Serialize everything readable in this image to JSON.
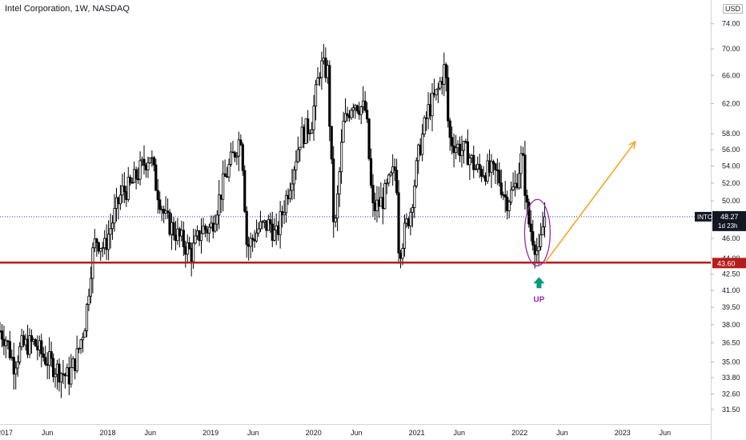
{
  "header": {
    "title": "Intel Corporation, 1W, NASDAQ",
    "currency": "USD"
  },
  "colors": {
    "candle": "#000000",
    "support_line": "#b71c1c",
    "last_price_line": "#2f3dc0",
    "projection_arrow": "#f5a623",
    "highlight_ellipse": "#9c27b0",
    "up_arrow": "#089981",
    "up_label": "#9c27b0"
  },
  "chart_data": {
    "type": "candlestick",
    "symbol": "INTC",
    "interval": "1W",
    "exchange": "NASDAQ",
    "y_scale": "log",
    "ylim": [
      30.5,
      78
    ],
    "xlim": [
      "2016-12-15",
      "2023-11-10"
    ],
    "y_ticks": [
      "31.50",
      "32.60",
      "33.80",
      "35.00",
      "36.50",
      "38.00",
      "39.50",
      "41.00",
      "42.50",
      "44.00",
      "46.00",
      "48.00",
      "50.00",
      "52.00",
      "54.00",
      "56.00",
      "58.00",
      "62.00",
      "66.00",
      "70.00",
      "74.00"
    ],
    "x_ticks": [
      {
        "label": "2017",
        "date": "2017-01-01"
      },
      {
        "label": "Jun",
        "date": "2017-06-01"
      },
      {
        "label": "2018",
        "date": "2018-01-01"
      },
      {
        "label": "Jun",
        "date": "2018-06-01"
      },
      {
        "label": "2019",
        "date": "2019-01-01"
      },
      {
        "label": "Jun",
        "date": "2019-06-01"
      },
      {
        "label": "2020",
        "date": "2020-01-01"
      },
      {
        "label": "Jun",
        "date": "2020-06-01"
      },
      {
        "label": "2021",
        "date": "2021-01-01"
      },
      {
        "label": "Jun",
        "date": "2021-06-01"
      },
      {
        "label": "2022",
        "date": "2022-01-01"
      },
      {
        "label": "Jun",
        "date": "2022-06-01"
      },
      {
        "label": "2023",
        "date": "2023-01-01"
      },
      {
        "label": "Jun",
        "date": "2023-06-01"
      }
    ],
    "close_path": [
      [
        "2016-12-15",
        37.5
      ],
      [
        "2017-01-06",
        36.8
      ],
      [
        "2017-02-01",
        34.8
      ],
      [
        "2017-03-01",
        36.2
      ],
      [
        "2017-04-15",
        36.5
      ],
      [
        "2017-05-15",
        35.5
      ],
      [
        "2017-07-01",
        34.5
      ],
      [
        "2017-08-15",
        33.8
      ],
      [
        "2017-09-15",
        35.5
      ],
      [
        "2017-10-15",
        38.5
      ],
      [
        "2017-11-05",
        44.0
      ],
      [
        "2017-11-20",
        46.0
      ],
      [
        "2017-12-20",
        45.0
      ],
      [
        "2018-01-20",
        48.0
      ],
      [
        "2018-02-20",
        51.0
      ],
      [
        "2018-03-20",
        51.5
      ],
      [
        "2018-04-25",
        53.5
      ],
      [
        "2018-06-01",
        55.5
      ],
      [
        "2018-06-20",
        52.0
      ],
      [
        "2018-07-25",
        48.0
      ],
      [
        "2018-09-01",
        46.5
      ],
      [
        "2018-10-25",
        44.5
      ],
      [
        "2018-12-01",
        47.0
      ],
      [
        "2019-01-01",
        47.0
      ],
      [
        "2019-02-20",
        52.5
      ],
      [
        "2019-04-20",
        58.0
      ],
      [
        "2019-05-10",
        45.0
      ],
      [
        "2019-06-20",
        47.0
      ],
      [
        "2019-08-01",
        47.5
      ],
      [
        "2019-08-20",
        46.0
      ],
      [
        "2019-10-01",
        51.0
      ],
      [
        "2019-11-15",
        57.5
      ],
      [
        "2019-12-25",
        59.5
      ],
      [
        "2020-01-25",
        67.5
      ],
      [
        "2020-02-20",
        66.5
      ],
      [
        "2020-03-15",
        46.0
      ],
      [
        "2020-04-15",
        59.0
      ],
      [
        "2020-05-20",
        62.5
      ],
      [
        "2020-07-05",
        61.0
      ],
      [
        "2020-07-28",
        49.0
      ],
      [
        "2020-09-01",
        50.0
      ],
      [
        "2020-10-20",
        54.0
      ],
      [
        "2020-10-30",
        44.5
      ],
      [
        "2020-12-10",
        49.0
      ],
      [
        "2021-01-10",
        56.0
      ],
      [
        "2021-02-10",
        61.0
      ],
      [
        "2021-03-15",
        63.5
      ],
      [
        "2021-04-12",
        67.5
      ],
      [
        "2021-04-25",
        57.5
      ],
      [
        "2021-05-20",
        56.5
      ],
      [
        "2021-07-01",
        55.5
      ],
      [
        "2021-08-01",
        53.5
      ],
      [
        "2021-09-01",
        53.5
      ],
      [
        "2021-10-15",
        53.0
      ],
      [
        "2021-11-15",
        50.0
      ],
      [
        "2021-12-15",
        51.5
      ],
      [
        "2022-01-10",
        55.5
      ],
      [
        "2022-01-30",
        48.0
      ],
      [
        "2022-03-01",
        45.0
      ],
      [
        "2022-03-10",
        44.2
      ],
      [
        "2022-03-30",
        48.5
      ],
      [
        "2022-04-05",
        48.27
      ]
    ],
    "annotations": {
      "symbol_label": "INTC",
      "last_price": "48.27",
      "countdown": "1d 23h",
      "support_price": "43.60",
      "up_label": "UP"
    },
    "support_line": 43.6,
    "last_price_line": 48.27,
    "projection_arrow": {
      "from": [
        "2022-04-01",
        43.6
      ],
      "to": [
        "2023-02-15",
        57.0
      ]
    },
    "highlight_ellipse": {
      "date": "2022-03-05",
      "y_low": 43.6,
      "y_high": 49.8
    }
  }
}
